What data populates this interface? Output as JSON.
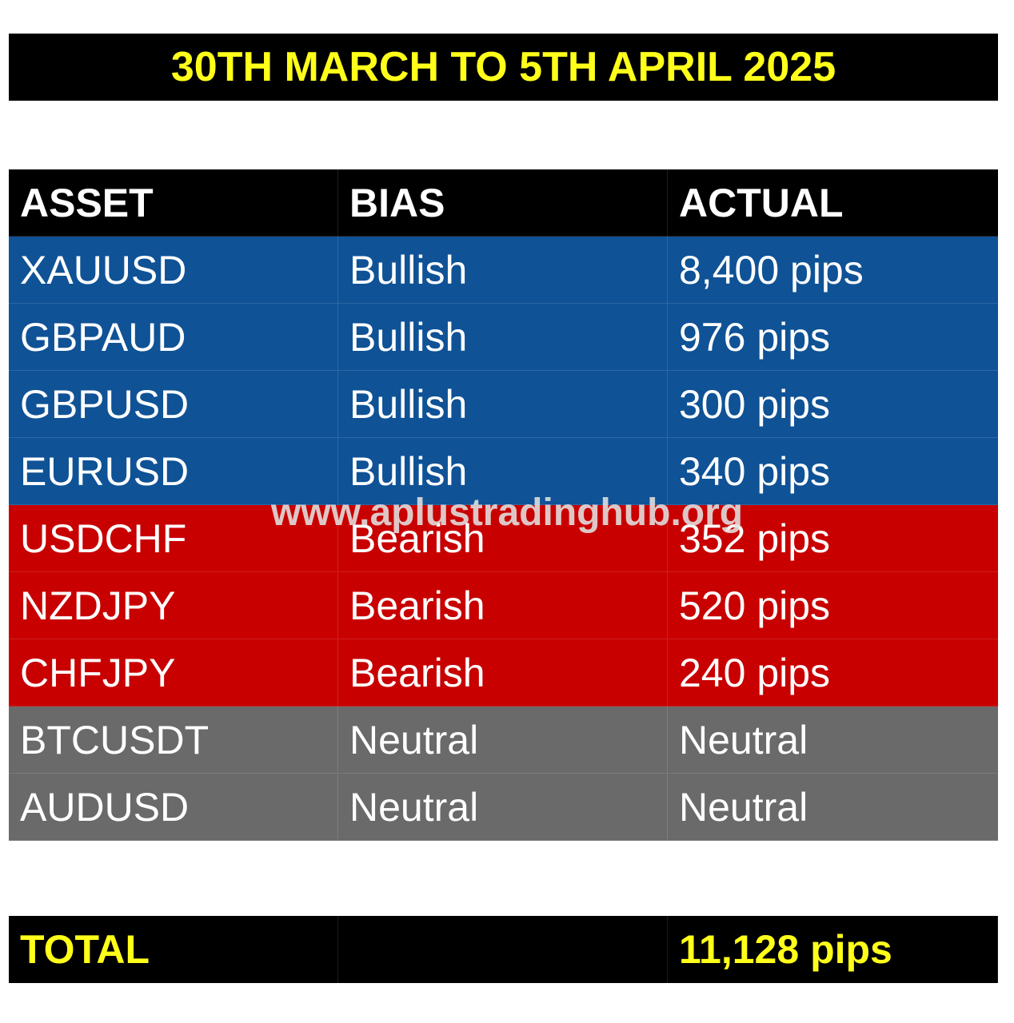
{
  "title": "30TH MARCH TO 5TH APRIL 2025",
  "colors": {
    "header_bg": "#000000",
    "title_text": "#ffff1a",
    "bullish_bg": "#0f5296",
    "bearish_bg": "#c80000",
    "neutral_bg": "#6a6a6a",
    "total_text": "#ffff1a"
  },
  "table": {
    "headers": [
      "ASSET",
      "BIAS",
      "ACTUAL"
    ],
    "rows": [
      {
        "asset": "XAUUSD",
        "bias": "Bullish",
        "actual": "8,400 pips"
      },
      {
        "asset": "GBPAUD",
        "bias": "Bullish",
        "actual": "976 pips"
      },
      {
        "asset": "GBPUSD",
        "bias": "Bullish",
        "actual": "300 pips"
      },
      {
        "asset": "EURUSD",
        "bias": "Bullish",
        "actual": "340 pips"
      },
      {
        "asset": "USDCHF",
        "bias": "Bearish",
        "actual": "352 pips"
      },
      {
        "asset": "NZDJPY",
        "bias": "Bearish",
        "actual": "520 pips"
      },
      {
        "asset": "CHFJPY",
        "bias": "Bearish",
        "actual": "240 pips"
      },
      {
        "asset": "BTCUSDT",
        "bias": "Neutral",
        "actual": "Neutral"
      },
      {
        "asset": "AUDUSD",
        "bias": "Neutral",
        "actual": "Neutral"
      }
    ]
  },
  "total": {
    "label": "TOTAL",
    "middle": "",
    "value": "11,128 pips"
  },
  "watermark": "www.aplustradinghub.org"
}
